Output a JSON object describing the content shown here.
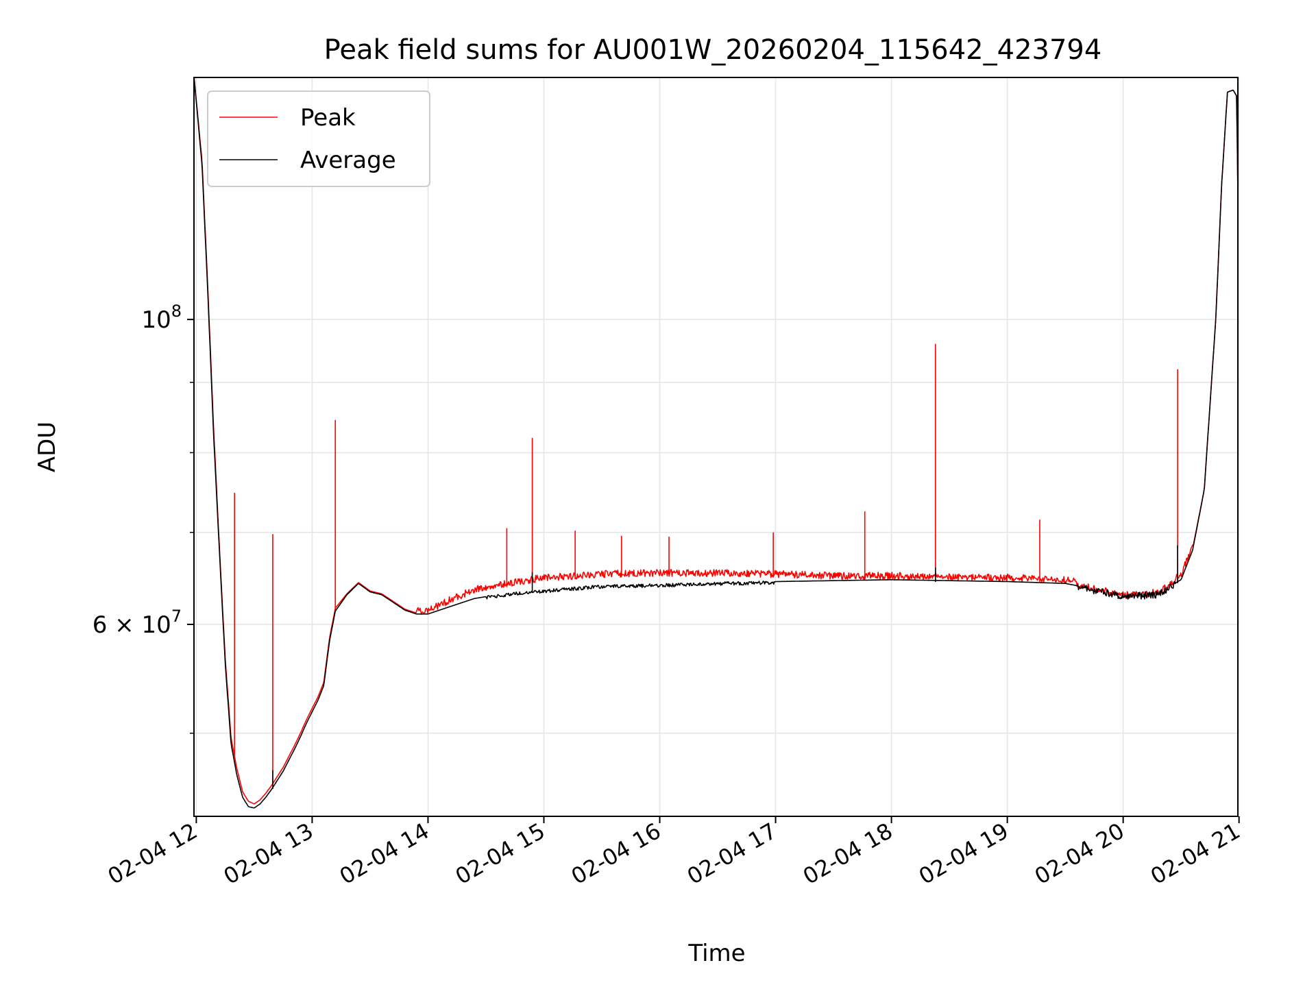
{
  "chart_data": {
    "type": "line",
    "title": "Peak field sums for AU001W_20260204_115642_423794",
    "xlabel": "Time",
    "ylabel": "ADU",
    "yscale": "log",
    "ylim": [
      43500000,
      150000000
    ],
    "xlim": [
      11.98,
      20.99
    ],
    "grid": true,
    "legend_position": "upper-left",
    "x_ticks": [
      {
        "value": 12,
        "label": "02-04 12"
      },
      {
        "value": 13,
        "label": "02-04 13"
      },
      {
        "value": 14,
        "label": "02-04 14"
      },
      {
        "value": 15,
        "label": "02-04 15"
      },
      {
        "value": 16,
        "label": "02-04 16"
      },
      {
        "value": 17,
        "label": "02-04 17"
      },
      {
        "value": 18,
        "label": "02-04 18"
      },
      {
        "value": 19,
        "label": "02-04 19"
      },
      {
        "value": 20,
        "label": "02-04 20"
      },
      {
        "value": 21,
        "label": "02-04 21"
      }
    ],
    "y_major_ticks": [
      {
        "value": 100000000,
        "base": "10",
        "exp": "8"
      },
      {
        "value": 60000000,
        "base": "6 × 10",
        "exp": "7"
      }
    ],
    "y_minor_ticks": [
      50000000,
      70000000,
      80000000,
      90000000
    ],
    "series": [
      {
        "name": "Peak",
        "color": "#ff0000",
        "x": [
          11.98,
          12.05,
          12.1,
          12.15,
          12.2,
          12.25,
          12.3,
          12.35,
          12.4,
          12.45,
          12.5,
          12.55,
          12.6,
          12.65,
          12.7,
          12.75,
          12.8,
          12.85,
          12.9,
          12.95,
          13.0,
          13.05,
          13.1,
          13.15,
          13.2,
          13.3,
          13.4,
          13.5,
          13.6,
          13.7,
          13.8,
          13.9,
          14.0,
          14.2,
          14.4,
          14.6,
          14.8,
          15.0,
          15.5,
          16.0,
          16.5,
          17.0,
          17.5,
          18.0,
          18.5,
          19.0,
          19.5,
          19.8,
          20.0,
          20.3,
          20.5,
          20.6,
          20.7,
          20.8,
          20.85,
          20.9,
          20.95,
          20.98,
          20.99
        ],
        "y": [
          150000000,
          130000000,
          105000000,
          83000000,
          68000000,
          56500000,
          49500000,
          47000000,
          45200000,
          44500000,
          44300000,
          44600000,
          45100000,
          45700000,
          46400000,
          47100000,
          48000000,
          48900000,
          49900000,
          51000000,
          52000000,
          53000000,
          54300000,
          58500000,
          61500000,
          63000000,
          64200000,
          63300000,
          63000000,
          62200000,
          61400000,
          61000000,
          61000000,
          62200000,
          63200000,
          63700000,
          64100000,
          64500000,
          64900000,
          65000000,
          65000000,
          64900000,
          64700000,
          64700000,
          64600000,
          64500000,
          64300000,
          63600000,
          63000000,
          63300000,
          64800000,
          68000000,
          75000000,
          100000000,
          125000000,
          146000000,
          146500000,
          145000000,
          123000000
        ]
      },
      {
        "name": "Average",
        "color": "#000000",
        "x": [
          11.98,
          12.05,
          12.1,
          12.15,
          12.2,
          12.25,
          12.3,
          12.35,
          12.4,
          12.45,
          12.5,
          12.55,
          12.6,
          12.65,
          12.7,
          12.75,
          12.8,
          12.85,
          12.9,
          12.95,
          13.0,
          13.05,
          13.1,
          13.15,
          13.2,
          13.3,
          13.4,
          13.5,
          13.6,
          13.7,
          13.8,
          13.9,
          14.0,
          14.2,
          14.4,
          14.6,
          14.8,
          15.0,
          15.5,
          16.0,
          16.5,
          17.0,
          17.5,
          18.0,
          18.5,
          19.0,
          19.5,
          19.8,
          20.0,
          20.3,
          20.5,
          20.6,
          20.7,
          20.8,
          20.85,
          20.9,
          20.95,
          20.98,
          20.99
        ],
        "y": [
          150000000,
          129000000,
          104000000,
          82000000,
          67500000,
          56000000,
          49000000,
          46500000,
          44800000,
          44100000,
          44000000,
          44300000,
          44800000,
          45400000,
          46100000,
          46800000,
          47700000,
          48600000,
          49600000,
          50700000,
          51700000,
          52700000,
          54000000,
          58200000,
          61200000,
          62900000,
          64100000,
          63200000,
          62900000,
          62100000,
          61300000,
          60900000,
          60900000,
          61700000,
          62500000,
          62900000,
          63200000,
          63400000,
          63900000,
          64000000,
          64200000,
          64300000,
          64400000,
          64500000,
          64400000,
          64300000,
          64100000,
          63400000,
          62800000,
          63100000,
          64500000,
          67800000,
          75000000,
          100000000,
          125000000,
          146000000,
          146500000,
          145000000,
          123000000
        ]
      }
    ],
    "spikes": [
      {
        "series": "Peak",
        "x": 12.33,
        "y": 74800000
      },
      {
        "series": "Peak",
        "x": 12.66,
        "y": 69800000
      },
      {
        "series": "Peak",
        "x": 13.2,
        "y": 84500000
      },
      {
        "series": "Peak",
        "x": 14.68,
        "y": 70500000
      },
      {
        "series": "Peak",
        "x": 14.9,
        "y": 82000000
      },
      {
        "series": "Peak",
        "x": 15.27,
        "y": 70200000
      },
      {
        "series": "Peak",
        "x": 15.67,
        "y": 69600000
      },
      {
        "series": "Peak",
        "x": 16.08,
        "y": 69500000
      },
      {
        "series": "Peak",
        "x": 16.98,
        "y": 70000000
      },
      {
        "series": "Peak",
        "x": 17.77,
        "y": 72500000
      },
      {
        "series": "Peak",
        "x": 18.38,
        "y": 96000000
      },
      {
        "series": "Peak",
        "x": 19.28,
        "y": 71500000
      },
      {
        "series": "Peak",
        "x": 20.47,
        "y": 92000000
      },
      {
        "series": "Average",
        "x": 12.66,
        "y": 47000000
      },
      {
        "series": "Average",
        "x": 14.9,
        "y": 65500000
      },
      {
        "series": "Average",
        "x": 18.38,
        "y": 66000000
      },
      {
        "series": "Average",
        "x": 20.47,
        "y": 68500000
      }
    ]
  }
}
